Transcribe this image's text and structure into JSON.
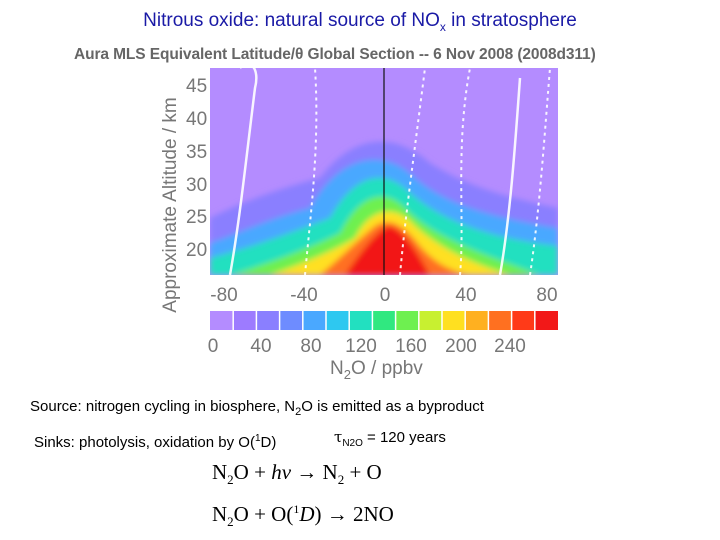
{
  "slide": {
    "title_main": "Nitrous oxide: natural source of NO",
    "title_sub": "x",
    "title_end": " in stratosphere"
  },
  "figure": {
    "title": "Aura MLS Equivalent Latitude/θ Global Section -- 6 Nov 2008 (2008d311)",
    "y_axis_label": "Approximate Altitude / km",
    "y_ticks": [
      "45",
      "40",
      "35",
      "30",
      "25",
      "20"
    ],
    "x_ticks": [
      "-80",
      "-40",
      "0",
      "40",
      "80"
    ],
    "colorbar_ticks": [
      "0",
      "40",
      "80",
      "120",
      "160",
      "200",
      "240"
    ],
    "colorbar_label_pre": "N",
    "colorbar_label_sub": "2",
    "colorbar_label_post": "O / ppbv",
    "colors": {
      "palette": [
        "#b48cff",
        "#9d7bff",
        "#8a7fff",
        "#6e8cff",
        "#4aa8ff",
        "#2ec8f0",
        "#22e0c0",
        "#30e880",
        "#6ef050",
        "#c8f030",
        "#ffe020",
        "#ffb020",
        "#ff7020",
        "#ff3a18",
        "#f21818"
      ]
    }
  },
  "text": {
    "source_pre": "Source: nitrogen cycling in biosphere, N",
    "source_sub": "2",
    "source_post": "O is emitted as a byproduct",
    "sinks_pre": "Sinks: photolysis, oxidation by O(",
    "sinks_sup": "1",
    "sinks_post": "D)",
    "tau_symbol": "τ",
    "tau_sub": "N2O",
    "tau_value": " = 120 years"
  },
  "equations": {
    "eq1_lhs_n": "N",
    "eq1_lhs_sub": "2",
    "eq1_lhs_rest": "O + ",
    "eq1_hv": "hν",
    "eq1_arrow": " → ",
    "eq1_rhs_n": "N",
    "eq1_rhs_sub": "2",
    "eq1_rhs_rest": " + O",
    "eq2_lhs_n": "N",
    "eq2_lhs_sub": "2",
    "eq2_lhs_rest": "O + O(",
    "eq2_sup": "1",
    "eq2_d": "D",
    "eq2_close": ")",
    "eq2_arrow": " → ",
    "eq2_rhs": "2NO"
  }
}
